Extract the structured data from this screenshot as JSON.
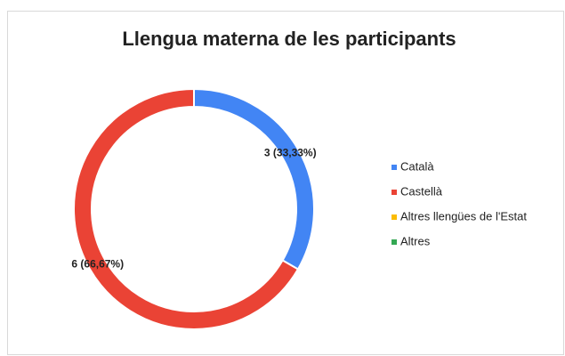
{
  "chart_data": {
    "type": "donut",
    "title": "Llengua materna de les participants",
    "categories": [
      "Català",
      "Castellà",
      "Altres llengües de l'Estat",
      "Altres"
    ],
    "values": [
      3,
      6,
      0,
      0
    ],
    "value_labels": [
      "3 (33,33%)",
      "6 (66,67%)",
      null,
      null
    ],
    "colors": [
      "#4285f4",
      "#ea4335",
      "#fbbc04",
      "#34a853"
    ],
    "legend": "right"
  }
}
